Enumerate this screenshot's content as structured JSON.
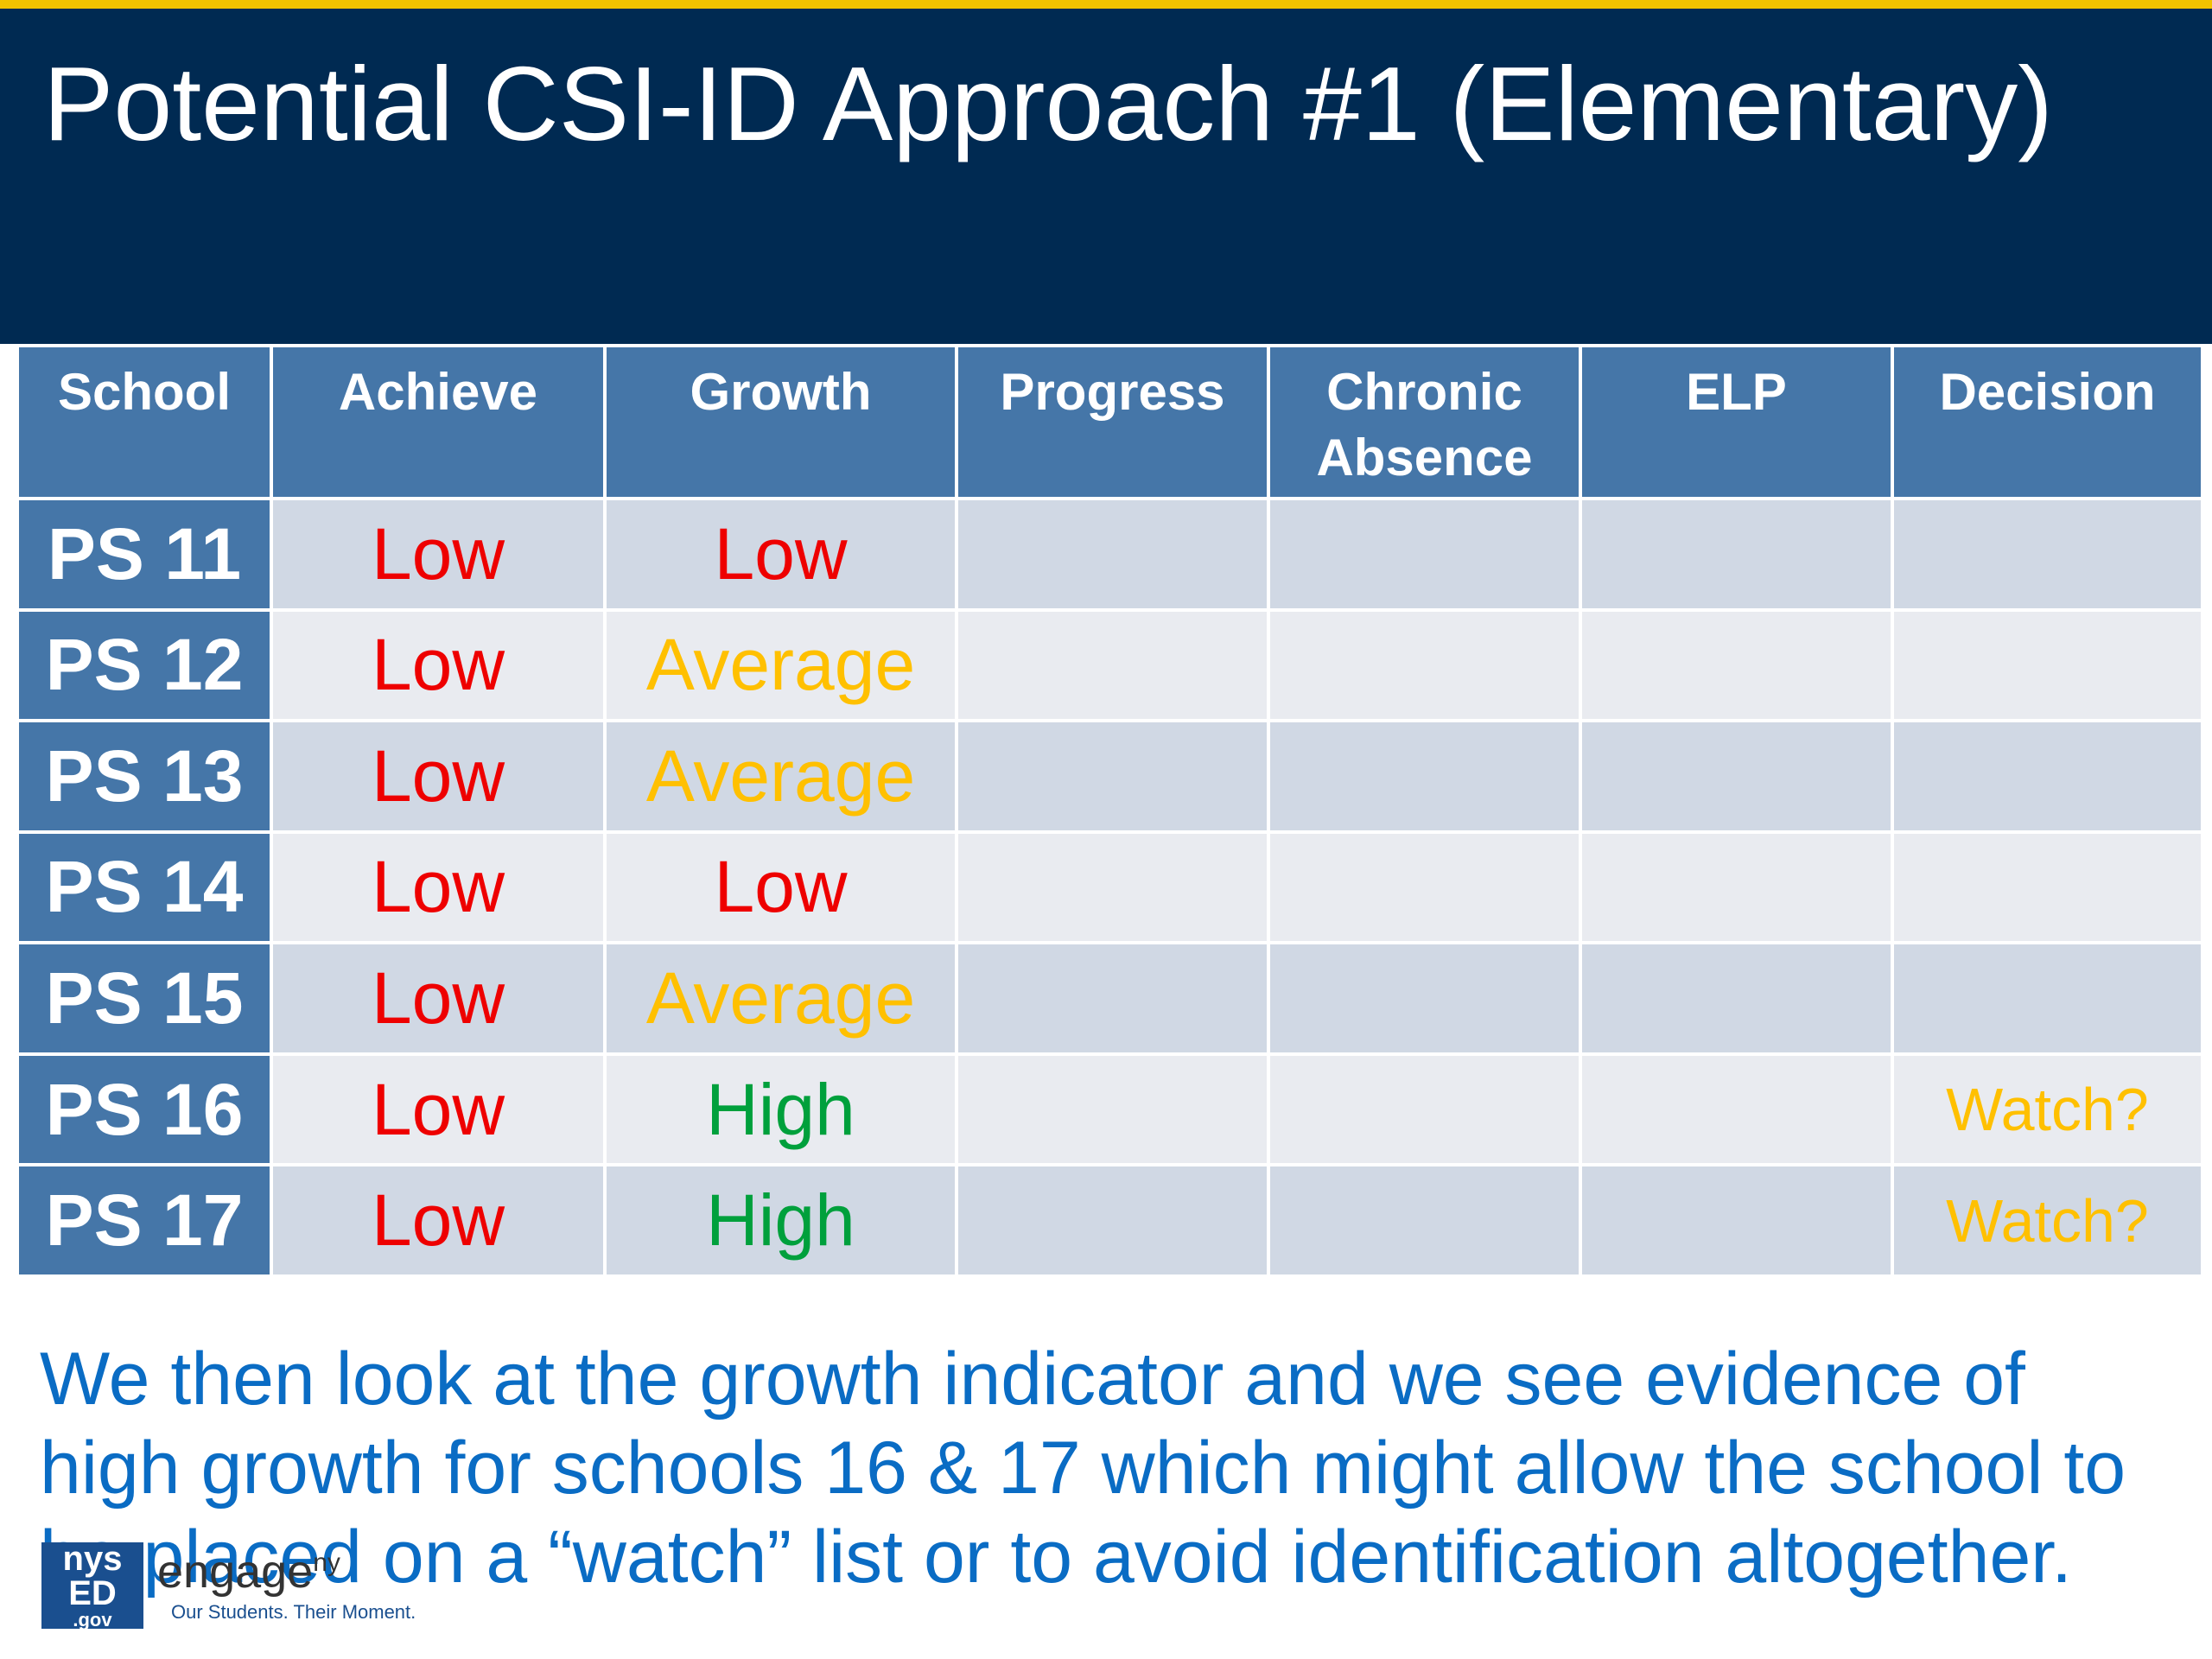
{
  "title": "Potential CSI-ID Approach #1 (Elementary)",
  "table": {
    "headers": [
      "School",
      "Achieve",
      "Growth",
      "Progress",
      "Chronic Absence",
      "ELP",
      "Decision"
    ],
    "rows": [
      {
        "school": "PS 11",
        "achieve": "Low",
        "growth": "Low",
        "progress": "",
        "chronic_absence": "",
        "elp": "",
        "decision": ""
      },
      {
        "school": "PS 12",
        "achieve": "Low",
        "growth": "Average",
        "progress": "",
        "chronic_absence": "",
        "elp": "",
        "decision": ""
      },
      {
        "school": "PS 13",
        "achieve": "Low",
        "growth": "Average",
        "progress": "",
        "chronic_absence": "",
        "elp": "",
        "decision": ""
      },
      {
        "school": "PS 14",
        "achieve": "Low",
        "growth": "Low",
        "progress": "",
        "chronic_absence": "",
        "elp": "",
        "decision": ""
      },
      {
        "school": "PS 15",
        "achieve": "Low",
        "growth": "Average",
        "progress": "",
        "chronic_absence": "",
        "elp": "",
        "decision": ""
      },
      {
        "school": "PS 16",
        "achieve": "Low",
        "growth": "High",
        "progress": "",
        "chronic_absence": "",
        "elp": "",
        "decision": "Watch?"
      },
      {
        "school": "PS 17",
        "achieve": "Low",
        "growth": "High",
        "progress": "",
        "chronic_absence": "",
        "elp": "",
        "decision": "Watch?"
      }
    ]
  },
  "caption": "We then look at the growth indicator and we see evidence of high growth for schools 16 & 17 which might allow the school to be placed on a “watch” list or to avoid identification altogether.",
  "logo": {
    "line1": "nys",
    "line2": "ED",
    "line3": ".gov",
    "word": "engage",
    "superscript": "ny",
    "tagline": "Our Students. Their Moment."
  },
  "colors": {
    "header_bg": "#002a52",
    "accent_line": "#f2c200",
    "table_header": "#4576a8",
    "low": "#ee0000",
    "average": "#ffc000",
    "high": "#00a03c",
    "caption": "#0a6cc4"
  }
}
